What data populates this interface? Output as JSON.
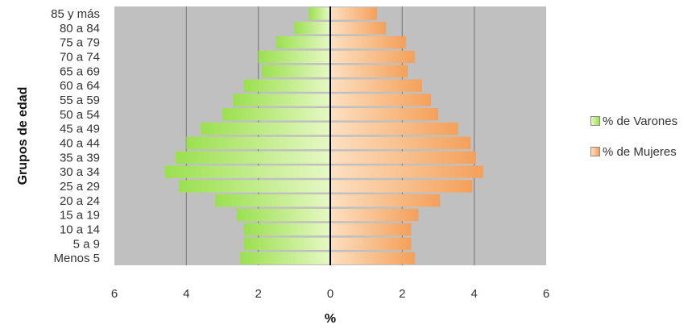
{
  "chart_data": {
    "type": "bar",
    "orientation": "horizontal",
    "layout": "population-pyramid",
    "categories": [
      "85 y más",
      "80 a 84",
      "75 a 79",
      "70 a 74",
      "65 a 69",
      "60 a 64",
      "55 a 59",
      "50 a 54",
      "45 a 49",
      "40 a 44",
      "35 a 39",
      "30 a 34",
      "25 a 29",
      "20 a 24",
      "15 a 19",
      "10 a 14",
      "5 a 9",
      "Menos 5"
    ],
    "series": [
      {
        "name": "% de Varones",
        "color": "#9be04f",
        "side": "left",
        "values": [
          0.6,
          1.0,
          1.5,
          2.0,
          1.9,
          2.4,
          2.7,
          3.0,
          3.6,
          4.0,
          4.3,
          4.6,
          4.2,
          3.2,
          2.6,
          2.4,
          2.4,
          2.5
        ]
      },
      {
        "name": "% de Mujeres",
        "color": "#f4a05a",
        "side": "right",
        "values": [
          1.3,
          1.55,
          2.1,
          2.35,
          2.15,
          2.55,
          2.8,
          3.0,
          3.55,
          3.9,
          4.05,
          4.25,
          3.95,
          3.05,
          2.45,
          2.25,
          2.25,
          2.35
        ]
      }
    ],
    "xlabel": "%",
    "ylabel": "Grupos de edad",
    "xlim": [
      -6,
      6
    ],
    "xticks": [
      -6,
      -4,
      -2,
      0,
      2,
      4,
      6
    ],
    "xtick_labels": [
      "6",
      "4",
      "2",
      "0",
      "2",
      "4",
      "6"
    ],
    "grid": true,
    "plot_background": "#c0c0c0",
    "legend_position": "right"
  }
}
